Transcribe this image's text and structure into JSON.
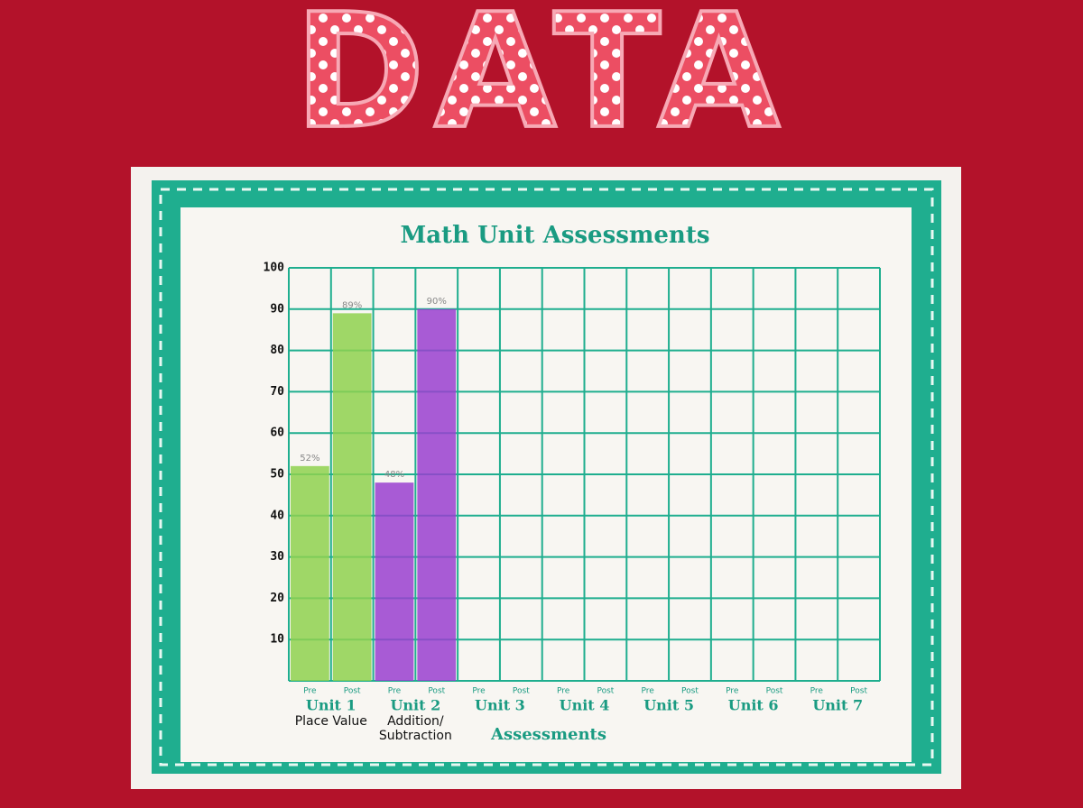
{
  "header": "DATA",
  "chart_data": {
    "type": "bar",
    "title": "Math Unit Assessments",
    "xlabel": "Assessments",
    "ylim": [
      0,
      100
    ],
    "yticks": [
      10,
      20,
      30,
      40,
      50,
      60,
      70,
      80,
      90,
      100
    ],
    "grid": true,
    "units": [
      {
        "label": "Unit 1",
        "note": [
          "Place Value"
        ],
        "color": "#8fd14f",
        "categories": [
          "Pre",
          "Post"
        ],
        "values": [
          52,
          89
        ],
        "value_labels": [
          "52%",
          "89%"
        ]
      },
      {
        "label": "Unit 2",
        "note": [
          "Addition/",
          "Subtraction"
        ],
        "color": "#9a3fd0",
        "categories": [
          "Pre",
          "Post"
        ],
        "values": [
          48,
          90
        ],
        "value_labels": [
          "48%",
          "90%"
        ]
      },
      {
        "label": "Unit 3",
        "categories": [
          "Pre",
          "Post"
        ],
        "values": [
          null,
          null
        ]
      },
      {
        "label": "Unit 4",
        "categories": [
          "Pre",
          "Post"
        ],
        "values": [
          null,
          null
        ]
      },
      {
        "label": "Unit 5",
        "categories": [
          "Pre",
          "Post"
        ],
        "values": [
          null,
          null
        ]
      },
      {
        "label": "Unit 6",
        "categories": [
          "Pre",
          "Post"
        ],
        "values": [
          null,
          null
        ]
      },
      {
        "label": "Unit 7",
        "categories": [
          "Pre",
          "Post"
        ],
        "values": [
          null,
          null
        ]
      }
    ]
  }
}
